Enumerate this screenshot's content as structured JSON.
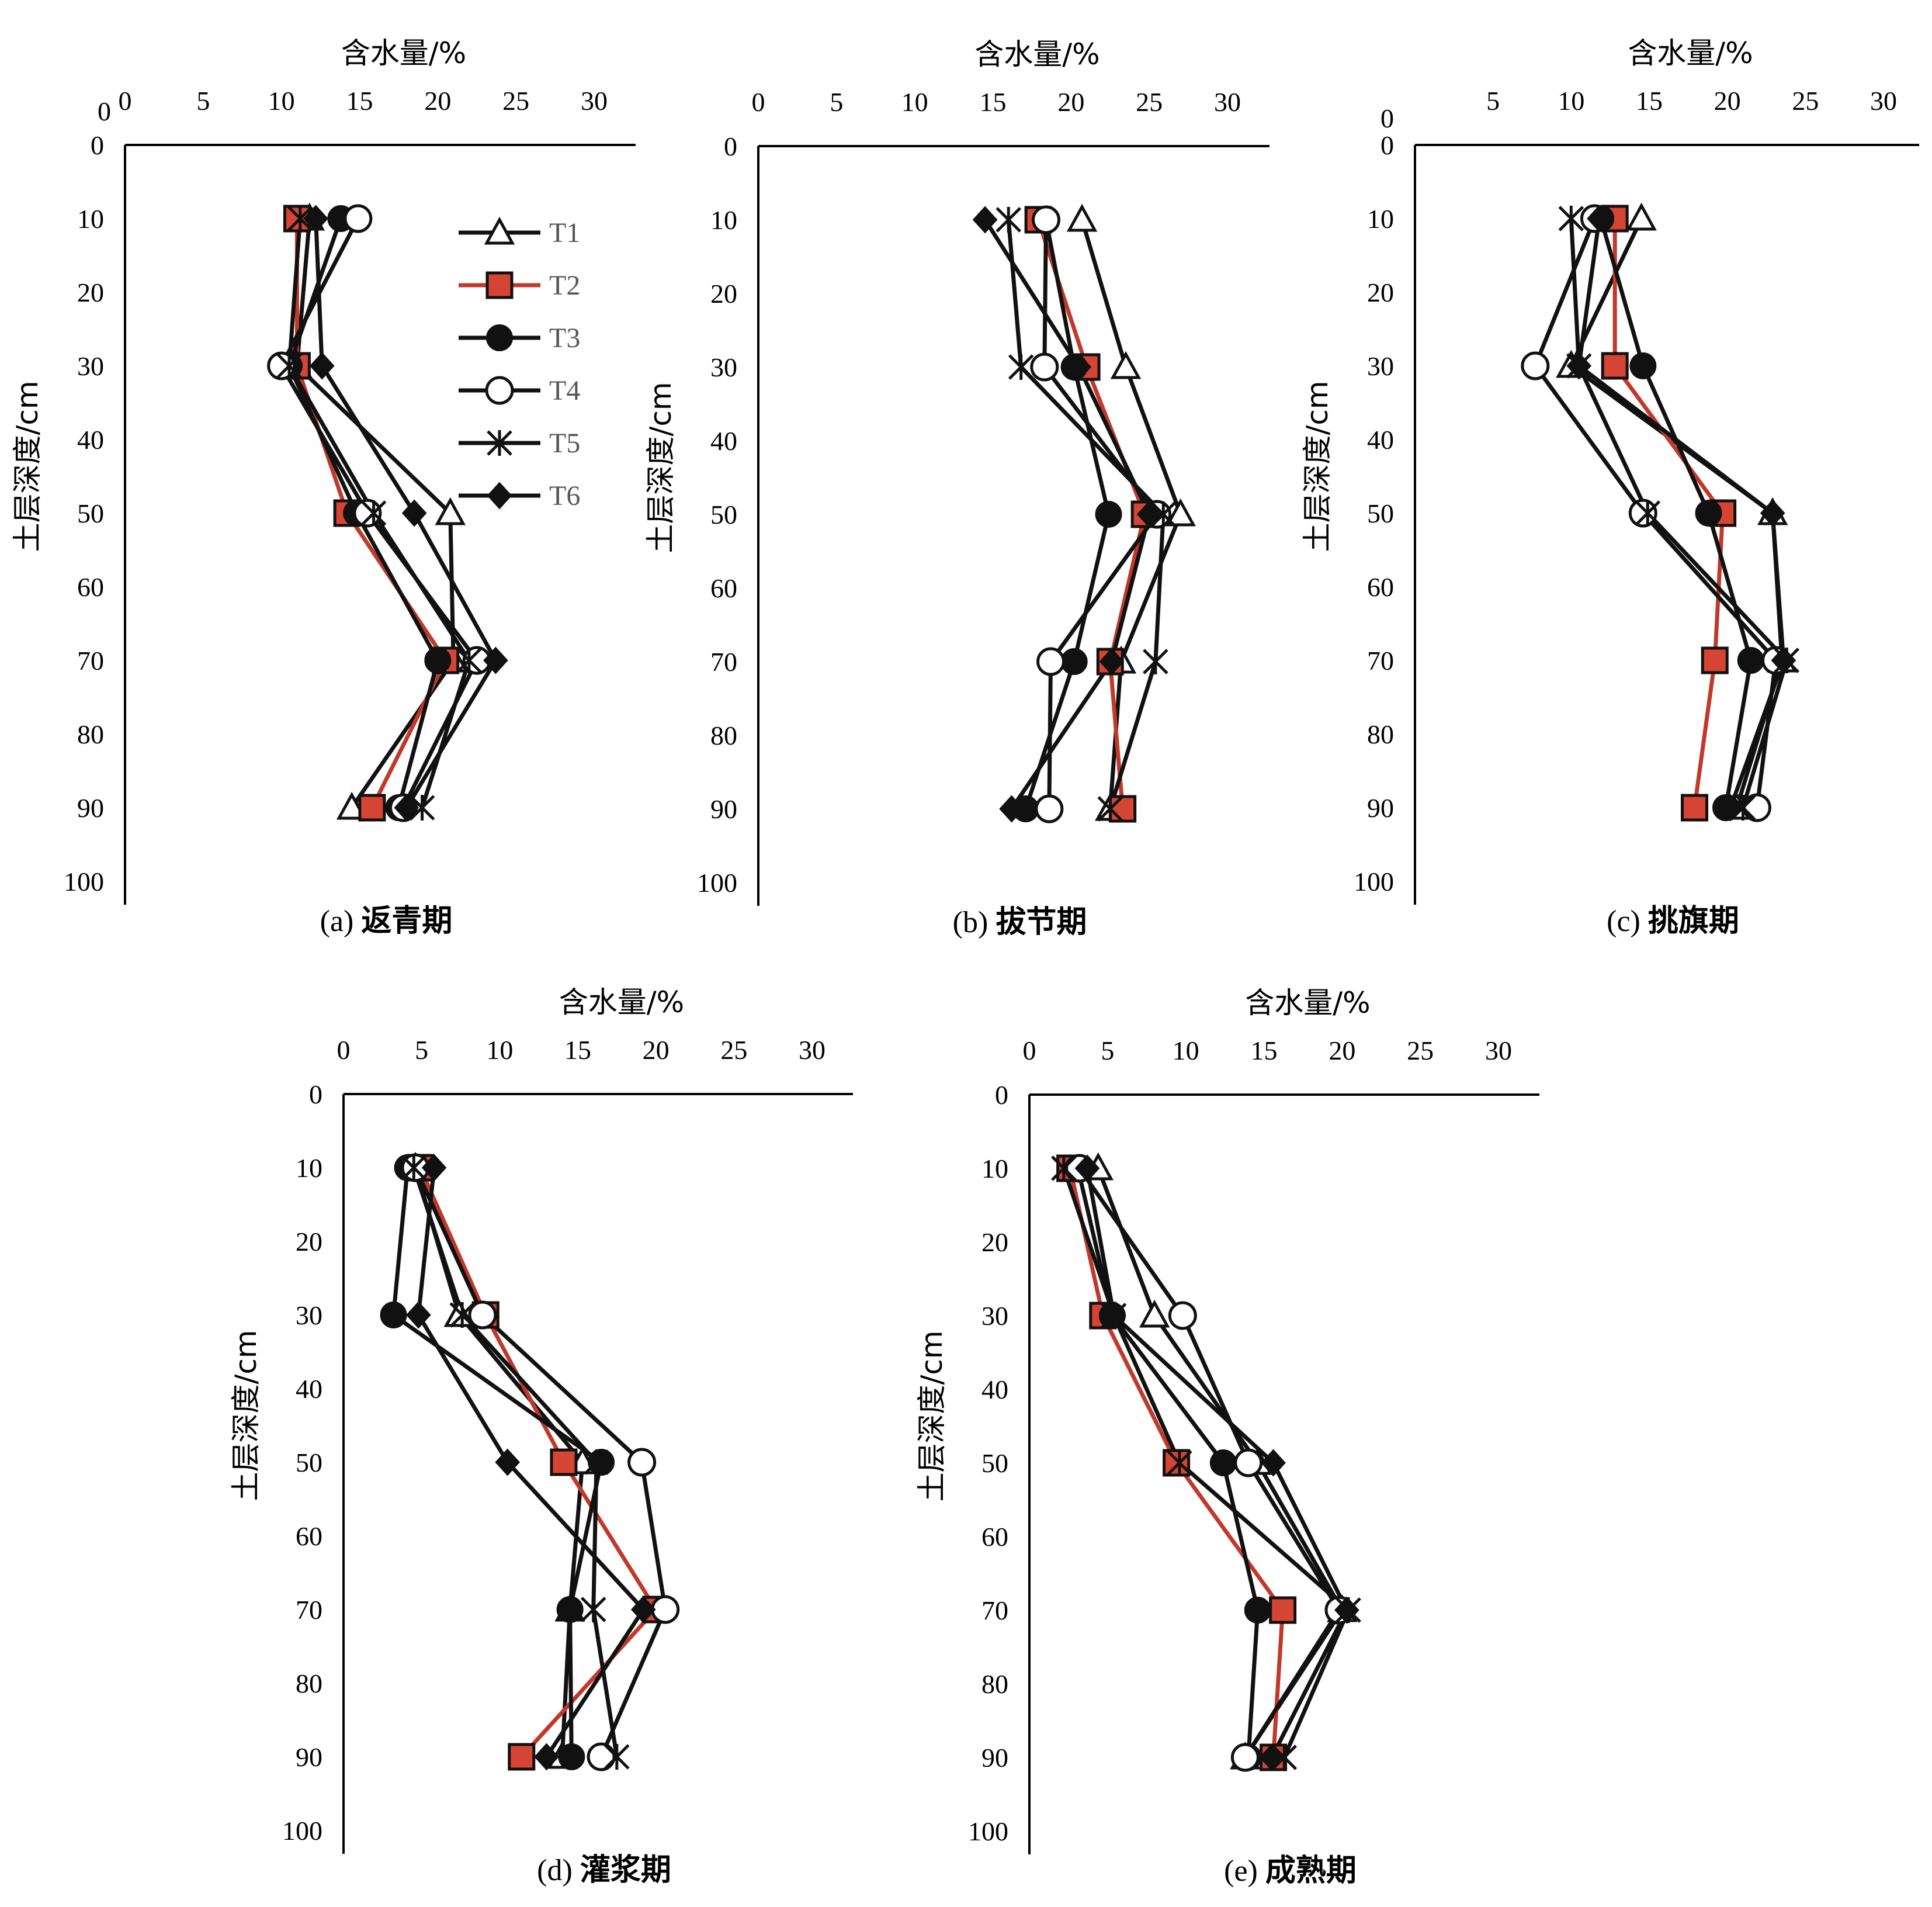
{
  "colors": {
    "black": "#111111",
    "red": "#c0392b",
    "marker_red_fill": "#d64533"
  },
  "legend": [
    {
      "name": "T1",
      "marker": "open-triangle",
      "color": "#111111"
    },
    {
      "name": "T2",
      "marker": "red-square",
      "color": "#c0392b"
    },
    {
      "name": "T3",
      "marker": "filled-circle",
      "color": "#111111"
    },
    {
      "name": "T4",
      "marker": "open-circle",
      "color": "#111111"
    },
    {
      "name": "T5",
      "marker": "star-cross",
      "color": "#111111"
    },
    {
      "name": "T6",
      "marker": "filled-diamond",
      "color": "#111111"
    }
  ],
  "chart_data": [
    {
      "type": "line",
      "caption_prefix": "(a)",
      "caption_cn": "返青期",
      "xlabel": "含水量/%",
      "ylabel": "土层深度/cm",
      "xlim": [
        0,
        32
      ],
      "ylim": [
        0,
        100
      ],
      "x_ticks": [
        0,
        5,
        10,
        15,
        20,
        25,
        30
      ],
      "y_ticks": [
        0,
        10,
        20,
        30,
        40,
        50,
        60,
        70,
        80,
        90,
        100
      ],
      "depths": [
        10,
        30,
        50,
        70,
        90
      ],
      "series": [
        {
          "name": "T1",
          "values": [
            11.8,
            11.0,
            20.8,
            21.0,
            14.5
          ]
        },
        {
          "name": "T2",
          "values": [
            11.0,
            11.0,
            14.2,
            20.5,
            15.8
          ]
        },
        {
          "name": "T3",
          "values": [
            13.8,
            10.5,
            14.8,
            20.0,
            17.5
          ]
        },
        {
          "name": "T4",
          "values": [
            14.9,
            10.0,
            15.5,
            22.5,
            17.8
          ]
        },
        {
          "name": "T5",
          "values": [
            11.2,
            10.5,
            15.9,
            22.0,
            19.0
          ]
        },
        {
          "name": "T6",
          "values": [
            12.2,
            12.6,
            18.5,
            23.7,
            18.0
          ]
        }
      ]
    },
    {
      "type": "line",
      "caption_prefix": "(b)",
      "caption_cn": "拔节期",
      "xlabel": "含水量/%",
      "ylabel": "土层深度/cm",
      "xlim": [
        0,
        32
      ],
      "ylim": [
        0,
        100
      ],
      "x_ticks": [
        0,
        5,
        10,
        15,
        20,
        25,
        30
      ],
      "y_ticks": [
        0,
        10,
        20,
        30,
        40,
        50,
        60,
        70,
        80,
        90,
        100
      ],
      "depths": [
        10,
        30,
        50,
        70,
        90
      ],
      "series": [
        {
          "name": "T1",
          "values": [
            20.7,
            23.5,
            27.0,
            23.2,
            22.5
          ]
        },
        {
          "name": "T2",
          "values": [
            17.9,
            21.0,
            24.7,
            22.5,
            23.3
          ]
        },
        {
          "name": "T3",
          "values": [
            18.4,
            20.2,
            22.4,
            20.2,
            17.1
          ]
        },
        {
          "name": "T4",
          "values": [
            18.4,
            18.3,
            25.5,
            18.7,
            18.6
          ]
        },
        {
          "name": "T5",
          "values": [
            16.0,
            16.8,
            25.9,
            25.4,
            22.5
          ]
        },
        {
          "name": "T6",
          "values": [
            14.5,
            20.5,
            25.0,
            22.6,
            16.2
          ]
        }
      ]
    },
    {
      "type": "line",
      "caption_prefix": "(c)",
      "caption_cn": "挑旗期",
      "xlabel": "含水量/%",
      "ylabel": "土层深度/cm",
      "xlim": [
        0,
        32
      ],
      "ylim": [
        0,
        100
      ],
      "x_ticks": [
        5,
        10,
        15,
        20,
        25,
        30
      ],
      "y_ticks": [
        0,
        10,
        20,
        30,
        40,
        50,
        60,
        70,
        80,
        90,
        100
      ],
      "depths": [
        10,
        30,
        50,
        70,
        90
      ],
      "series": [
        {
          "name": "T1",
          "values": [
            14.5,
            10.0,
            22.9,
            23.5,
            20.6
          ]
        },
        {
          "name": "T2",
          "values": [
            12.8,
            12.8,
            19.7,
            19.2,
            17.9
          ]
        },
        {
          "name": "T3",
          "values": [
            11.9,
            14.6,
            18.8,
            21.5,
            19.9
          ]
        },
        {
          "name": "T4",
          "values": [
            11.5,
            7.7,
            14.6,
            23.1,
            21.9
          ]
        },
        {
          "name": "T5",
          "values": [
            10.0,
            10.5,
            14.9,
            23.8,
            21.0
          ]
        },
        {
          "name": "T6",
          "values": [
            11.8,
            10.5,
            22.9,
            23.6,
            20.2
          ]
        }
      ]
    },
    {
      "type": "line",
      "caption_prefix": "(d)",
      "caption_cn": "灌浆期",
      "xlabel": "含水量/%",
      "ylabel": "土层深度/cm",
      "xlim": [
        0,
        32
      ],
      "ylim": [
        0,
        100
      ],
      "x_ticks": [
        0,
        5,
        10,
        15,
        20,
        25,
        30
      ],
      "y_ticks": [
        0,
        10,
        20,
        30,
        40,
        50,
        60,
        70,
        80,
        90,
        100
      ],
      "depths": [
        10,
        30,
        50,
        70,
        90
      ],
      "series": [
        {
          "name": "T1",
          "values": [
            4.6,
            7.4,
            15.3,
            14.5,
            14.0
          ]
        },
        {
          "name": "T2",
          "values": [
            4.9,
            9.1,
            14.1,
            20.0,
            11.4
          ]
        },
        {
          "name": "T3",
          "values": [
            4.1,
            3.2,
            16.5,
            14.5,
            14.6
          ]
        },
        {
          "name": "T4",
          "values": [
            4.6,
            8.9,
            19.1,
            20.6,
            16.5
          ]
        },
        {
          "name": "T5",
          "values": [
            4.5,
            7.6,
            16.2,
            16.0,
            17.5
          ]
        },
        {
          "name": "T6",
          "values": [
            5.8,
            4.8,
            10.5,
            19.2,
            13.0
          ]
        }
      ]
    },
    {
      "type": "line",
      "caption_prefix": "(e)",
      "caption_cn": "成熟期",
      "xlabel": "含水量/%",
      "ylabel": "土层深度/cm",
      "xlim": [
        0,
        32
      ],
      "ylim": [
        0,
        100
      ],
      "x_ticks": [
        0,
        5,
        10,
        15,
        20,
        25,
        30
      ],
      "y_ticks": [
        0,
        10,
        20,
        30,
        40,
        50,
        60,
        70,
        80,
        90,
        100
      ],
      "depths": [
        10,
        30,
        50,
        70,
        90
      ],
      "series": [
        {
          "name": "T1",
          "values": [
            4.4,
            8.0,
            14.6,
            20.0,
            13.8
          ]
        },
        {
          "name": "T2",
          "values": [
            2.6,
            4.7,
            9.4,
            16.2,
            15.6
          ]
        },
        {
          "name": "T3",
          "values": [
            3.1,
            5.3,
            12.4,
            14.6,
            14.0
          ]
        },
        {
          "name": "T4",
          "values": [
            3.2,
            9.8,
            14.0,
            19.8,
            13.8
          ]
        },
        {
          "name": "T5",
          "values": [
            2.2,
            5.4,
            9.6,
            20.4,
            16.3
          ]
        },
        {
          "name": "T6",
          "values": [
            3.7,
            5.4,
            15.6,
            20.3,
            15.5
          ]
        }
      ]
    }
  ]
}
